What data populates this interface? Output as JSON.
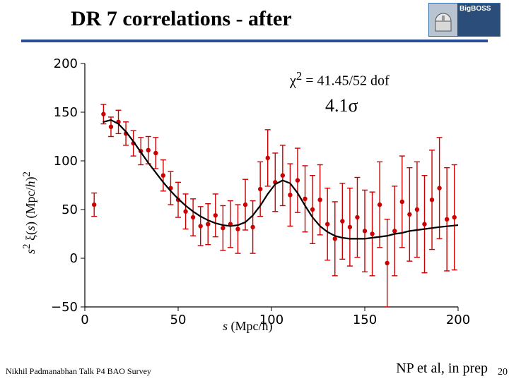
{
  "header": {
    "title": "DR 7 correlations - after",
    "logo_text": "BigBOSS",
    "hr_color": "#2a4d9a"
  },
  "chart": {
    "type": "scatter-errorbar-with-curve",
    "background_color": "#ffffff",
    "axis_color": "#000000",
    "tick_fontsize": 18,
    "tick_font": "DejaVu Sans, Arial, sans-serif",
    "xlim": [
      0,
      200
    ],
    "ylim": [
      -50,
      200
    ],
    "xticks": [
      0,
      50,
      100,
      150,
      200
    ],
    "yticks": [
      -50,
      0,
      50,
      100,
      150,
      200
    ],
    "xlabel_html": "<span style='font-style:italic'>s</span> (Mpc/h)",
    "ylabel_html": "<span style='font-style:italic'>s</span><sup>2</sup> ξ(<span style='font-style:italic'>s</span>) (Mpc/<span style='font-style:italic'>h</span>)<sup>2</sup>",
    "annotation_chi2_html": "χ<sup>2</sup> = 41.45/52 dof",
    "annotation_sigma_html": "4.1σ",
    "marker_color": "#cc0000",
    "marker_radius": 3.2,
    "error_color": "#cc0000",
    "error_linewidth": 1.4,
    "error_cap": 4,
    "curve_color": "#000000",
    "curve_linewidth": 2.2,
    "curve": [
      [
        10,
        140
      ],
      [
        14,
        142
      ],
      [
        18,
        138
      ],
      [
        22,
        130
      ],
      [
        26,
        120
      ],
      [
        30,
        109
      ],
      [
        34,
        98
      ],
      [
        38,
        88
      ],
      [
        42,
        78
      ],
      [
        46,
        69
      ],
      [
        50,
        61
      ],
      [
        54,
        54
      ],
      [
        58,
        48
      ],
      [
        62,
        43
      ],
      [
        66,
        39
      ],
      [
        70,
        36
      ],
      [
        74,
        34
      ],
      [
        78,
        33
      ],
      [
        82,
        34
      ],
      [
        86,
        37
      ],
      [
        90,
        44
      ],
      [
        94,
        54
      ],
      [
        98,
        66
      ],
      [
        102,
        76
      ],
      [
        106,
        80
      ],
      [
        110,
        77
      ],
      [
        114,
        67
      ],
      [
        118,
        54
      ],
      [
        122,
        42
      ],
      [
        126,
        33
      ],
      [
        130,
        27
      ],
      [
        134,
        23
      ],
      [
        138,
        21
      ],
      [
        142,
        20
      ],
      [
        146,
        20
      ],
      [
        150,
        20
      ],
      [
        154,
        21
      ],
      [
        158,
        22
      ],
      [
        162,
        23
      ],
      [
        166,
        25
      ],
      [
        170,
        26
      ],
      [
        174,
        28
      ],
      [
        178,
        29
      ],
      [
        182,
        30
      ],
      [
        186,
        31
      ],
      [
        190,
        32
      ],
      [
        195,
        33
      ],
      [
        200,
        34
      ]
    ],
    "points": [
      {
        "x": 5,
        "y": 55,
        "err": 12
      },
      {
        "x": 10,
        "y": 148,
        "err": 10
      },
      {
        "x": 14,
        "y": 135,
        "err": 10
      },
      {
        "x": 18,
        "y": 140,
        "err": 12
      },
      {
        "x": 22,
        "y": 128,
        "err": 12
      },
      {
        "x": 26,
        "y": 118,
        "err": 13
      },
      {
        "x": 30,
        "y": 110,
        "err": 14
      },
      {
        "x": 34,
        "y": 111,
        "err": 14
      },
      {
        "x": 38,
        "y": 108,
        "err": 16
      },
      {
        "x": 42,
        "y": 85,
        "err": 16
      },
      {
        "x": 46,
        "y": 72,
        "err": 17
      },
      {
        "x": 50,
        "y": 60,
        "err": 18
      },
      {
        "x": 54,
        "y": 48,
        "err": 18
      },
      {
        "x": 58,
        "y": 42,
        "err": 19
      },
      {
        "x": 62,
        "y": 33,
        "err": 20
      },
      {
        "x": 66,
        "y": 35,
        "err": 21
      },
      {
        "x": 70,
        "y": 44,
        "err": 22
      },
      {
        "x": 74,
        "y": 31,
        "err": 23
      },
      {
        "x": 78,
        "y": 35,
        "err": 24
      },
      {
        "x": 82,
        "y": 30,
        "err": 25
      },
      {
        "x": 86,
        "y": 55,
        "err": 26
      },
      {
        "x": 90,
        "y": 32,
        "err": 27
      },
      {
        "x": 94,
        "y": 71,
        "err": 28
      },
      {
        "x": 98,
        "y": 103,
        "err": 29
      },
      {
        "x": 102,
        "y": 78,
        "err": 30
      },
      {
        "x": 106,
        "y": 85,
        "err": 31
      },
      {
        "x": 110,
        "y": 65,
        "err": 32
      },
      {
        "x": 114,
        "y": 80,
        "err": 33
      },
      {
        "x": 118,
        "y": 61,
        "err": 34
      },
      {
        "x": 122,
        "y": 50,
        "err": 35
      },
      {
        "x": 126,
        "y": 60,
        "err": 36
      },
      {
        "x": 130,
        "y": 35,
        "err": 37
      },
      {
        "x": 134,
        "y": 20,
        "err": 38
      },
      {
        "x": 138,
        "y": 38,
        "err": 39
      },
      {
        "x": 142,
        "y": 32,
        "err": 40
      },
      {
        "x": 146,
        "y": 42,
        "err": 41
      },
      {
        "x": 150,
        "y": 28,
        "err": 42
      },
      {
        "x": 154,
        "y": 25,
        "err": 43
      },
      {
        "x": 158,
        "y": 55,
        "err": 44
      },
      {
        "x": 162,
        "y": -5,
        "err": 45
      },
      {
        "x": 166,
        "y": 28,
        "err": 46
      },
      {
        "x": 170,
        "y": 58,
        "err": 47
      },
      {
        "x": 174,
        "y": 45,
        "err": 48
      },
      {
        "x": 178,
        "y": 50,
        "err": 49
      },
      {
        "x": 182,
        "y": 35,
        "err": 50
      },
      {
        "x": 186,
        "y": 60,
        "err": 51
      },
      {
        "x": 190,
        "y": 72,
        "err": 52
      },
      {
        "x": 194,
        "y": 40,
        "err": 53
      },
      {
        "x": 198,
        "y": 42,
        "err": 54
      }
    ]
  },
  "footer": {
    "left": "Nikhil Padmanabhan Talk P4 BAO Survey",
    "right": "NP et al, in prep",
    "slide_number": "20"
  }
}
